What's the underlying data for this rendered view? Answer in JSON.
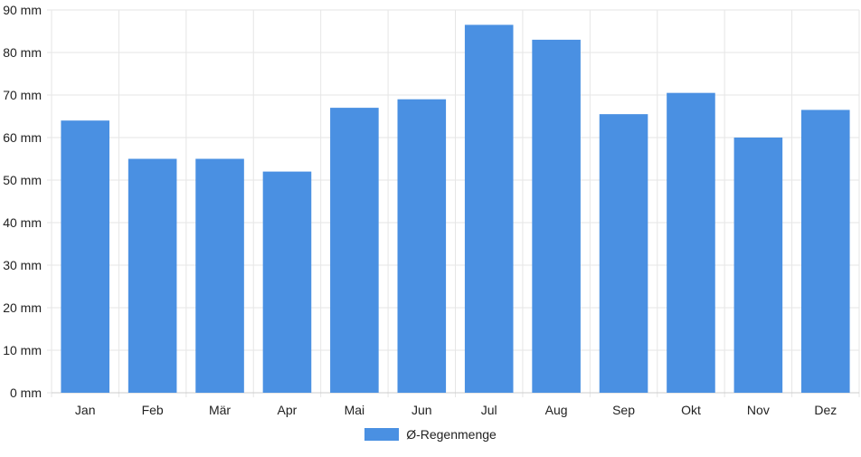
{
  "chart_data": {
    "type": "bar",
    "categories": [
      "Jan",
      "Feb",
      "Mär",
      "Apr",
      "Mai",
      "Jun",
      "Jul",
      "Aug",
      "Sep",
      "Okt",
      "Nov",
      "Dez"
    ],
    "series": [
      {
        "name": "Ø-Regenmenge",
        "values": [
          64,
          55,
          55,
          52,
          67,
          69,
          86.5,
          83,
          65.5,
          70.5,
          60,
          66.5
        ]
      }
    ],
    "yunit": " mm",
    "ylim": [
      0,
      90
    ],
    "yticks": [
      0,
      10,
      20,
      30,
      40,
      50,
      60,
      70,
      80,
      90
    ],
    "grid": true,
    "legend_position": "bottom",
    "colors": {
      "bar": "#4a90e2",
      "grid": "#e6e6e6",
      "axis": "#cccccc",
      "text": "#222222"
    }
  }
}
